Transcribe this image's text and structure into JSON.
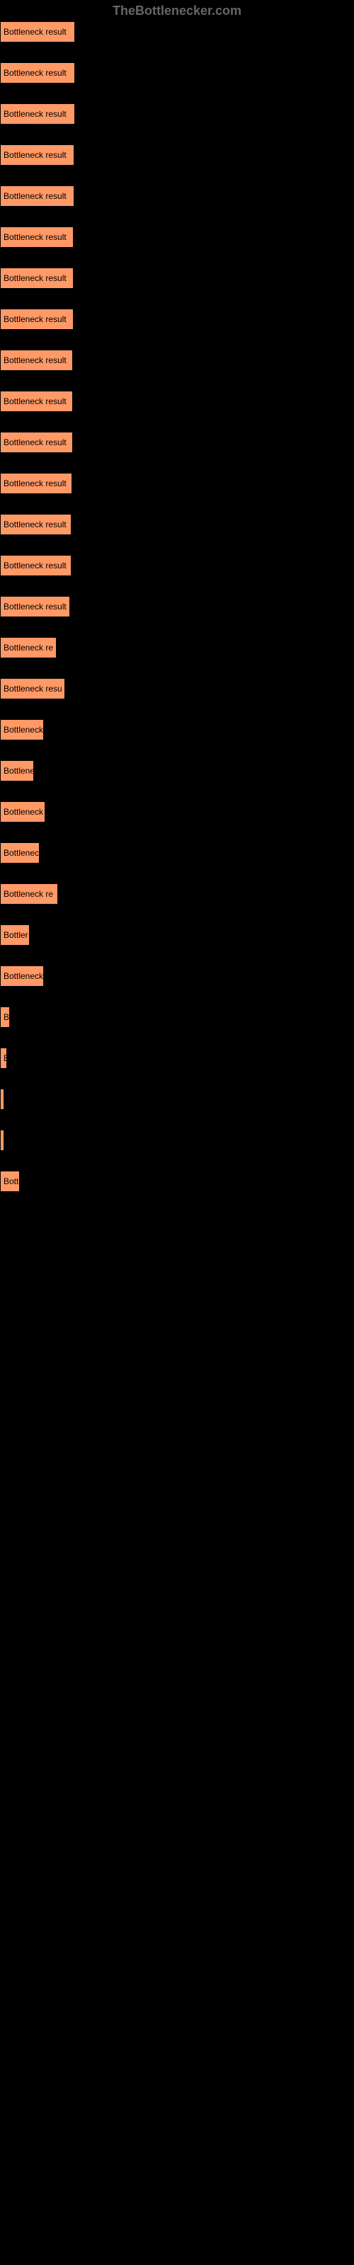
{
  "header": "TheBottlenecker.com",
  "chart": {
    "type": "bar",
    "bar_color": "#ff9966",
    "bar_border_color": "#000000",
    "background_color": "#000000",
    "text_color": "#000000",
    "header_color": "#666666",
    "font_size": 12,
    "max_width": 500,
    "bars": [
      {
        "label": "Bottleneck result",
        "width": 106
      },
      {
        "label": "Bottleneck result",
        "width": 106
      },
      {
        "label": "Bottleneck result",
        "width": 106
      },
      {
        "label": "Bottleneck result",
        "width": 105
      },
      {
        "label": "Bottleneck result",
        "width": 105
      },
      {
        "label": "Bottleneck result",
        "width": 104
      },
      {
        "label": "Bottleneck result",
        "width": 104
      },
      {
        "label": "Bottleneck result",
        "width": 104
      },
      {
        "label": "Bottleneck result",
        "width": 103
      },
      {
        "label": "Bottleneck result",
        "width": 103
      },
      {
        "label": "Bottleneck result",
        "width": 103
      },
      {
        "label": "Bottleneck result",
        "width": 102
      },
      {
        "label": "Bottleneck result",
        "width": 101
      },
      {
        "label": "Bottleneck result",
        "width": 101
      },
      {
        "label": "Bottleneck result",
        "width": 99
      },
      {
        "label": "Bottleneck re",
        "width": 80
      },
      {
        "label": "Bottleneck resu",
        "width": 92
      },
      {
        "label": "Bottleneck",
        "width": 62
      },
      {
        "label": "Bottlene",
        "width": 48
      },
      {
        "label": "Bottleneck",
        "width": 64
      },
      {
        "label": "Bottlenec",
        "width": 56
      },
      {
        "label": "Bottleneck re",
        "width": 82
      },
      {
        "label": "Bottler",
        "width": 42
      },
      {
        "label": "Bottleneck",
        "width": 62
      },
      {
        "label": "Bo",
        "width": 14
      },
      {
        "label": "B",
        "width": 10
      },
      {
        "label": "",
        "width": 4
      },
      {
        "label": "",
        "width": 5
      },
      {
        "label": "Bott",
        "width": 28
      }
    ]
  }
}
